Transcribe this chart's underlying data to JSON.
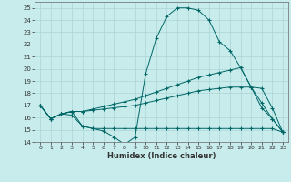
{
  "xlabel": "Humidex (Indice chaleur)",
  "bg_color": "#c8ecec",
  "grid_color": "#acd4d4",
  "line_color": "#006666",
  "xlim": [
    -0.5,
    23.5
  ],
  "ylim": [
    14,
    25.5
  ],
  "yticks": [
    14,
    15,
    16,
    17,
    18,
    19,
    20,
    21,
    22,
    23,
    24,
    25
  ],
  "xticks": [
    0,
    1,
    2,
    3,
    4,
    5,
    6,
    7,
    8,
    9,
    10,
    11,
    12,
    13,
    14,
    15,
    16,
    17,
    18,
    19,
    20,
    21,
    22,
    23
  ],
  "series": [
    {
      "x": [
        0,
        1,
        2,
        3,
        4,
        5,
        6,
        7,
        8,
        9,
        10,
        11,
        12,
        13,
        14,
        15,
        16,
        17,
        18,
        19,
        20,
        21,
        22,
        23
      ],
      "y": [
        17.0,
        15.9,
        16.3,
        16.5,
        15.3,
        15.1,
        14.9,
        14.4,
        13.8,
        14.4,
        19.6,
        22.5,
        24.3,
        25.0,
        25.0,
        24.8,
        24.0,
        22.2,
        21.5,
        20.1,
        18.5,
        16.8,
        15.9,
        14.8
      ]
    },
    {
      "x": [
        0,
        1,
        2,
        3,
        4,
        5,
        6,
        7,
        8,
        9,
        10,
        11,
        12,
        13,
        14,
        15,
        16,
        17,
        18,
        19,
        20,
        21,
        22,
        23
      ],
      "y": [
        17.0,
        15.9,
        16.3,
        16.2,
        15.3,
        15.1,
        15.1,
        15.1,
        15.1,
        15.1,
        15.1,
        15.1,
        15.1,
        15.1,
        15.1,
        15.1,
        15.1,
        15.1,
        15.1,
        15.1,
        15.1,
        15.1,
        15.1,
        14.8
      ]
    },
    {
      "x": [
        0,
        1,
        2,
        3,
        4,
        5,
        6,
        7,
        8,
        9,
        10,
        11,
        12,
        13,
        14,
        15,
        16,
        17,
        18,
        19,
        20,
        21,
        22,
        23
      ],
      "y": [
        17.0,
        15.9,
        16.3,
        16.5,
        16.5,
        16.6,
        16.7,
        16.8,
        16.9,
        17.0,
        17.2,
        17.4,
        17.6,
        17.8,
        18.0,
        18.2,
        18.3,
        18.4,
        18.5,
        18.5,
        18.5,
        18.4,
        16.8,
        14.8
      ]
    },
    {
      "x": [
        0,
        1,
        2,
        3,
        4,
        5,
        6,
        7,
        8,
        9,
        10,
        11,
        12,
        13,
        14,
        15,
        16,
        17,
        18,
        19,
        20,
        21,
        22,
        23
      ],
      "y": [
        17.0,
        15.9,
        16.3,
        16.5,
        16.5,
        16.7,
        16.9,
        17.1,
        17.3,
        17.5,
        17.8,
        18.1,
        18.4,
        18.7,
        19.0,
        19.3,
        19.5,
        19.7,
        19.9,
        20.1,
        18.5,
        17.2,
        15.9,
        14.8
      ]
    }
  ]
}
